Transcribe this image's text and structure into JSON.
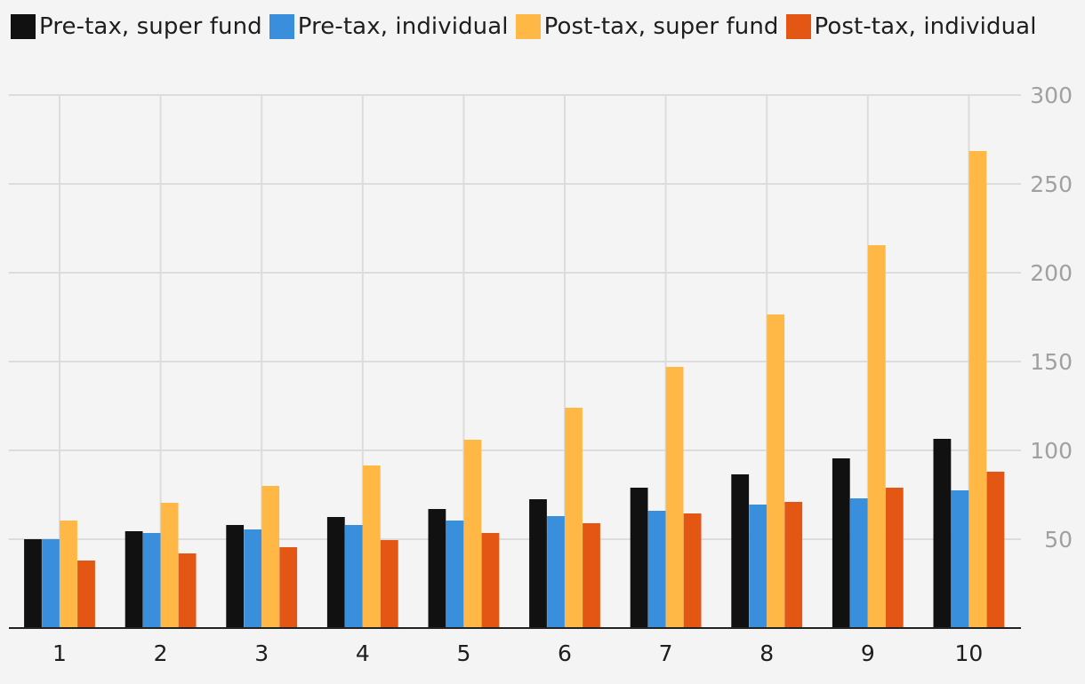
{
  "chart_data": {
    "type": "bar",
    "title": "",
    "xlabel": "",
    "ylabel": "",
    "categories": [
      "1",
      "2",
      "3",
      "4",
      "5",
      "6",
      "7",
      "8",
      "9",
      "10"
    ],
    "ylim": [
      0,
      300
    ],
    "y_ticks": [
      50,
      100,
      150,
      200,
      250,
      300
    ],
    "y_axis_side": "right",
    "grid": true,
    "legend_position": "top-left",
    "series": [
      {
        "name": "Pre-tax, super fund",
        "color": "#111111",
        "values": [
          50,
          54.5,
          58,
          62.5,
          67,
          72.5,
          79,
          86.5,
          95.5,
          106.5
        ]
      },
      {
        "name": "Pre-tax, individual",
        "color": "#3a8fdc",
        "values": [
          50,
          53.5,
          55.5,
          58,
          60.5,
          63,
          66,
          69.5,
          73,
          77.5
        ]
      },
      {
        "name": "Post-tax, super fund",
        "color": "#ffb845",
        "values": [
          60.5,
          70.5,
          80,
          91.5,
          106,
          124,
          147,
          176.5,
          215.5,
          268.5
        ]
      },
      {
        "name": "Post-tax, individual",
        "color": "#e35613",
        "values": [
          38,
          42,
          45.5,
          49.5,
          53.5,
          59,
          64.5,
          71,
          79,
          88
        ]
      }
    ]
  }
}
